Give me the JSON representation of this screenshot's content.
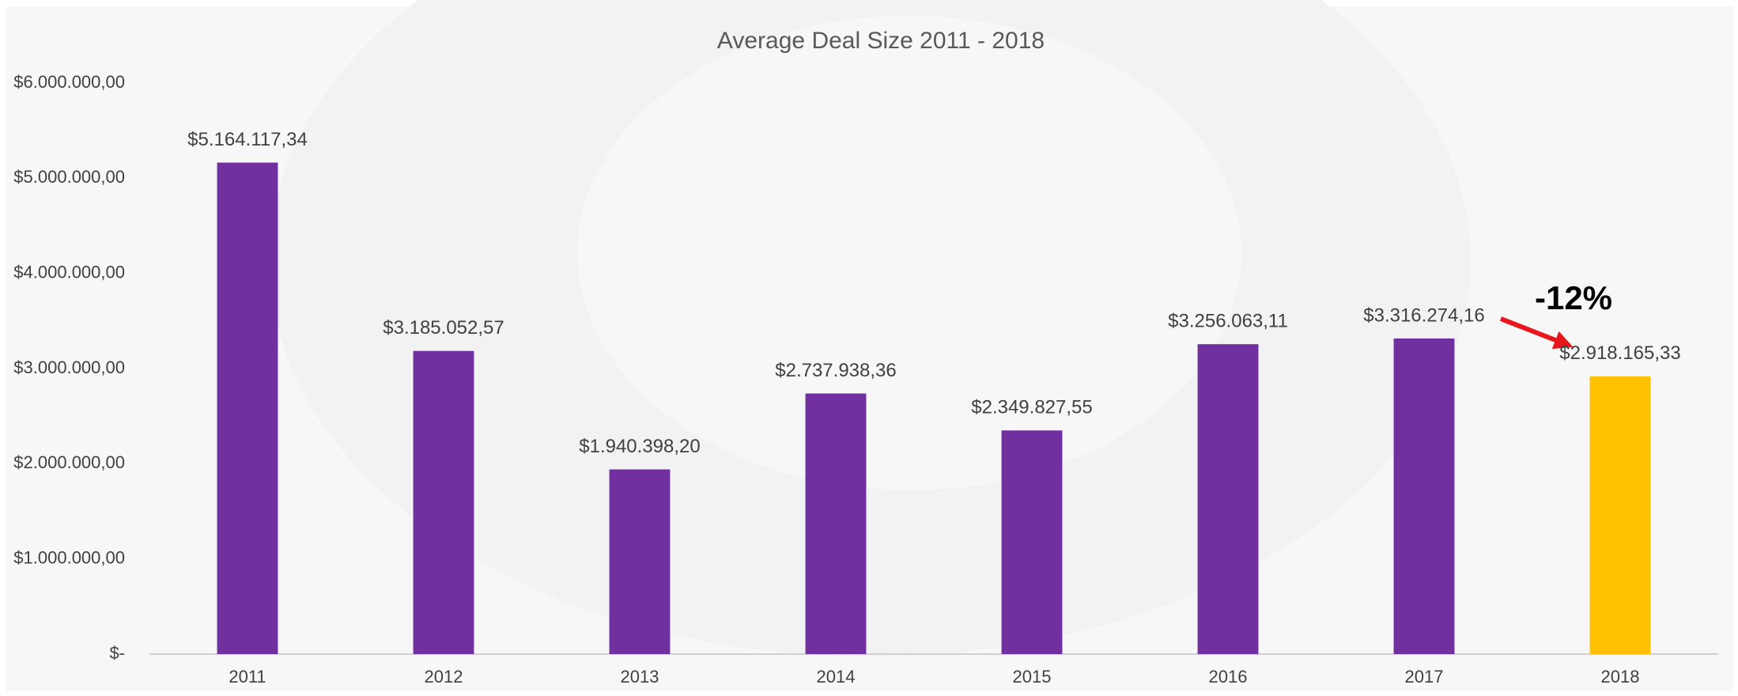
{
  "chart_data": {
    "type": "bar",
    "title": "Average Deal Size 2011 - 2018",
    "categories": [
      "2011",
      "2012",
      "2013",
      "2014",
      "2015",
      "2016",
      "2017",
      "2018"
    ],
    "values": [
      5164117.34,
      3185052.57,
      1940398.2,
      2737938.36,
      2349827.55,
      3256063.11,
      3316274.16,
      2918165.33
    ],
    "value_labels": [
      "$5.164.117,34",
      "$3.185.052,57",
      "$1.940.398,20",
      "$2.737.938,36",
      "$2.349.827,55",
      "$3.256.063,11",
      "$3.316.274,16",
      "$2.918.165,33"
    ],
    "colors": [
      "#7030a0",
      "#7030a0",
      "#7030a0",
      "#7030a0",
      "#7030a0",
      "#7030a0",
      "#7030a0",
      "#ffc000"
    ],
    "ylim": [
      0,
      6000000
    ],
    "yticks": [
      {
        "value": 0,
        "label": "$-"
      },
      {
        "value": 1000000,
        "label": "$1.000.000,00"
      },
      {
        "value": 2000000,
        "label": "$2.000.000,00"
      },
      {
        "value": 3000000,
        "label": "$3.000.000,00"
      },
      {
        "value": 4000000,
        "label": "$4.000.000,00"
      },
      {
        "value": 5000000,
        "label": "$5.000.000,00"
      },
      {
        "value": 6000000,
        "label": "$6.000.000,00"
      }
    ],
    "grid": false,
    "annotation": "-12%"
  }
}
